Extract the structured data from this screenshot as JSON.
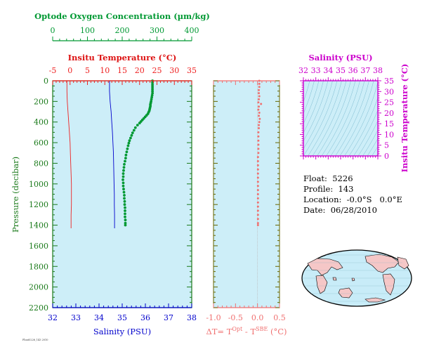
{
  "colors": {
    "panel_bg": "#cdeef8",
    "oxygen": "#009933",
    "temperature": "#ee2222",
    "salinity": "#0000cc",
    "delta": "#f07070",
    "ts_magenta": "#cc00cc",
    "pressure_axis": "#1a7a1a",
    "map_land": "#f5c7c7",
    "map_ocean": "#c8ecf8"
  },
  "info": {
    "float_line": "Float:  5226",
    "profile_line": "Profile:  143",
    "location_line": "Location:  -0.0°S   0.0°E",
    "date_line": "Date:  06/28/2010"
  },
  "corner_tag": "Float5226_143 2010",
  "chart_data": [
    {
      "type": "line",
      "name": "main_profile_panel",
      "ylabel": "Pressure (decibar)",
      "yticks": [
        0,
        200,
        400,
        600,
        800,
        1000,
        1200,
        1400,
        1600,
        1800,
        2000,
        2200
      ],
      "ylim": [
        2200,
        0
      ],
      "oxygen": {
        "label": "Optode Oxygen Concentration (µm/kg)",
        "xlim": [
          0,
          400
        ],
        "xticks": [
          0,
          100,
          200,
          300,
          400
        ],
        "points": [
          [
            287,
            0
          ],
          [
            287,
            20
          ],
          [
            287,
            40
          ],
          [
            287,
            60
          ],
          [
            287,
            80
          ],
          [
            287,
            100
          ],
          [
            287,
            120
          ],
          [
            286,
            140
          ],
          [
            285,
            160
          ],
          [
            284,
            180
          ],
          [
            283,
            200
          ],
          [
            282,
            215
          ],
          [
            281,
            230
          ],
          [
            281,
            245
          ],
          [
            280,
            260
          ],
          [
            279,
            275
          ],
          [
            278,
            290
          ],
          [
            276,
            305
          ],
          [
            274,
            320
          ],
          [
            270,
            335
          ],
          [
            266,
            350
          ],
          [
            262,
            365
          ],
          [
            258,
            380
          ],
          [
            254,
            395
          ],
          [
            250,
            410
          ],
          [
            244,
            430
          ],
          [
            238,
            455
          ],
          [
            234,
            480
          ],
          [
            230,
            505
          ],
          [
            227,
            530
          ],
          [
            224,
            555
          ],
          [
            221,
            580
          ],
          [
            219,
            605
          ],
          [
            217,
            630
          ],
          [
            215,
            660
          ],
          [
            213,
            690
          ],
          [
            211,
            720
          ],
          [
            210,
            750
          ],
          [
            208,
            780
          ],
          [
            206,
            810
          ],
          [
            205,
            840
          ],
          [
            204,
            870
          ],
          [
            203,
            900
          ],
          [
            203,
            930
          ],
          [
            202,
            960
          ],
          [
            203,
            990
          ],
          [
            203,
            1020
          ],
          [
            204,
            1050
          ],
          [
            205,
            1080
          ],
          [
            206,
            1110
          ],
          [
            206,
            1140
          ],
          [
            207,
            1170
          ],
          [
            207,
            1200
          ],
          [
            208,
            1230
          ],
          [
            208,
            1260
          ],
          [
            208,
            1290
          ],
          [
            208,
            1320
          ],
          [
            209,
            1350
          ],
          [
            209,
            1380
          ],
          [
            209,
            1400
          ]
        ]
      },
      "temperature": {
        "label": "Insitu Temperature (°C)",
        "xlim": [
          -5,
          35
        ],
        "xticks": [
          -5,
          0,
          5,
          10,
          15,
          20,
          25,
          30,
          35
        ],
        "points": [
          [
            -0.9,
            0
          ],
          [
            -0.9,
            100
          ],
          [
            -0.8,
            200
          ],
          [
            -0.6,
            300
          ],
          [
            -0.4,
            400
          ],
          [
            -0.2,
            500
          ],
          [
            0,
            600
          ],
          [
            0.1,
            700
          ],
          [
            0.2,
            800
          ],
          [
            0.3,
            900
          ],
          [
            0.4,
            1000
          ],
          [
            0.4,
            1100
          ],
          [
            0.4,
            1200
          ],
          [
            0.3,
            1300
          ],
          [
            0.3,
            1430
          ]
        ]
      },
      "salinity": {
        "label": "Salinity (PSU)",
        "xlim": [
          32,
          38
        ],
        "xticks": [
          32,
          33,
          34,
          35,
          36,
          37,
          38
        ],
        "points": [
          [
            34.45,
            0
          ],
          [
            34.45,
            100
          ],
          [
            34.48,
            200
          ],
          [
            34.52,
            300
          ],
          [
            34.55,
            400
          ],
          [
            34.58,
            500
          ],
          [
            34.6,
            600
          ],
          [
            34.62,
            700
          ],
          [
            34.63,
            800
          ],
          [
            34.64,
            900
          ],
          [
            34.65,
            1000
          ],
          [
            34.66,
            1100
          ],
          [
            34.66,
            1200
          ],
          [
            34.67,
            1300
          ],
          [
            34.67,
            1430
          ]
        ]
      }
    },
    {
      "type": "scatter",
      "name": "delta_temperature_panel",
      "xlabel": "ΔT= T",
      "xlabel_sup1": "Opt",
      "xlabel_mid": " - T",
      "xlabel_sup2": "SBE",
      "xlabel_end": " (°C)",
      "xlim": [
        -1.0,
        0.5
      ],
      "xticks": [
        "-1.0",
        "-0.5",
        "0.0",
        "0.5"
      ],
      "tick_values": [
        -1.0,
        -0.5,
        0.0,
        0.5
      ],
      "ylim": [
        2200,
        0
      ],
      "points": [
        [
          0.04,
          0
        ],
        [
          0.04,
          30
        ],
        [
          0.04,
          60
        ],
        [
          0.03,
          90
        ],
        [
          0.03,
          120
        ],
        [
          0.04,
          150
        ],
        [
          0.03,
          180
        ],
        [
          0.02,
          210
        ],
        [
          0.08,
          225
        ],
        [
          0.03,
          250
        ],
        [
          0.02,
          280
        ],
        [
          0.04,
          310
        ],
        [
          0.03,
          340
        ],
        [
          0.05,
          370
        ],
        [
          0.04,
          400
        ],
        [
          0.03,
          430
        ],
        [
          0.03,
          460
        ],
        [
          0.02,
          500
        ],
        [
          0.02,
          540
        ],
        [
          0.02,
          580
        ],
        [
          0.02,
          620
        ],
        [
          0.02,
          660
        ],
        [
          0.02,
          700
        ],
        [
          0.01,
          740
        ],
        [
          0.01,
          780
        ],
        [
          0.01,
          820
        ],
        [
          0.01,
          860
        ],
        [
          0.01,
          900
        ],
        [
          0.01,
          940
        ],
        [
          0.01,
          980
        ],
        [
          0.01,
          1020
        ],
        [
          0.01,
          1060
        ],
        [
          0.01,
          1100
        ],
        [
          0.01,
          1140
        ],
        [
          0.01,
          1180
        ],
        [
          0.01,
          1220
        ],
        [
          0.01,
          1260
        ],
        [
          0.01,
          1300
        ],
        [
          0.01,
          1340
        ],
        [
          0.01,
          1380
        ],
        [
          0.01,
          1400
        ]
      ]
    },
    {
      "type": "line",
      "name": "ts_diagram",
      "title": "Salinity (PSU)",
      "ylabel": "Insitu Temperature (°C)",
      "xlim": [
        32,
        38
      ],
      "xticks": [
        32,
        33,
        34,
        35,
        36,
        37,
        38
      ],
      "ylim": [
        0,
        35
      ],
      "yticks": [
        0,
        5,
        10,
        15,
        20,
        25,
        30,
        35
      ]
    }
  ]
}
